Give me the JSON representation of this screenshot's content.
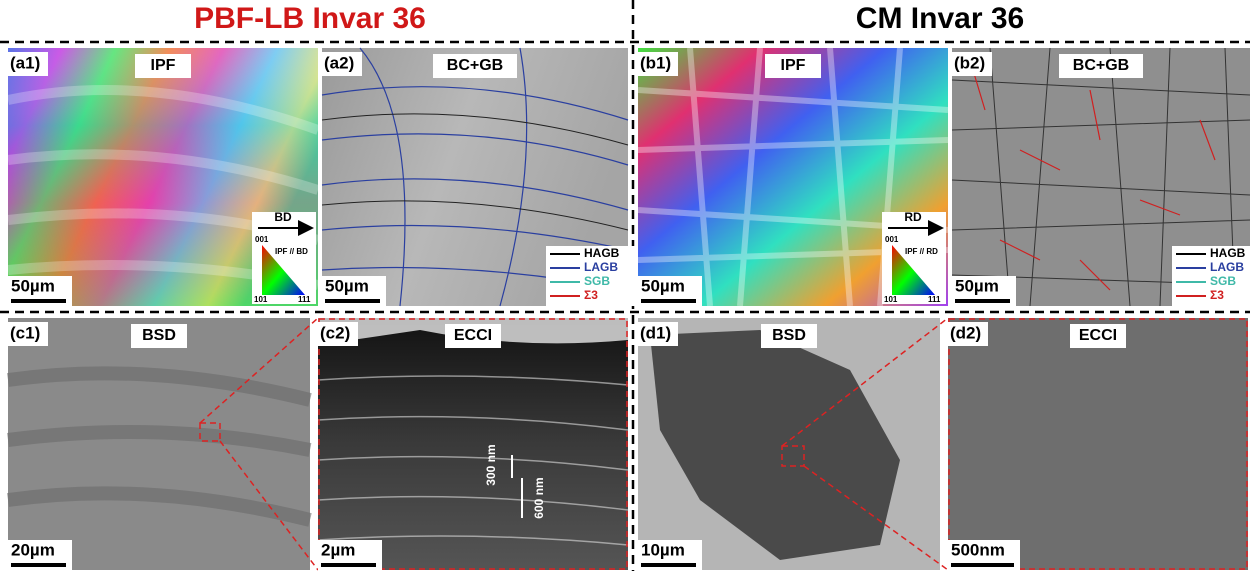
{
  "headers": [
    "PBF-LB Invar 36",
    "CM Invar 36"
  ],
  "panels": [
    {
      "label": "(a1)",
      "title": "IPF",
      "scale_bar": "50µm"
    },
    {
      "label": "(a2)",
      "title": "BC+GB",
      "scale_bar": "50µm"
    },
    {
      "label": "(b1)",
      "title": "IPF",
      "scale_bar": "50µm"
    },
    {
      "label": "(b2)",
      "title": "BC+GB",
      "scale_bar": "50µm"
    },
    {
      "label": "(c1)",
      "title": "BSD",
      "scale_bar": "20µm"
    },
    {
      "label": "(c2)",
      "title": "ECCI",
      "scale_bar": "2µm"
    },
    {
      "label": "(d1)",
      "title": "BSD",
      "scale_bar": "10µm"
    },
    {
      "label": "(d2)",
      "title": "ECCI",
      "scale_bar": "500nm"
    }
  ],
  "ipf_keys": [
    {
      "direction": "BD",
      "title": "IPF // BD",
      "corners": [
        "001",
        "101",
        "111"
      ]
    },
    {
      "direction": "RD",
      "title": "IPF // RD",
      "corners": [
        "001",
        "101",
        "111"
      ]
    }
  ],
  "boundary_legend": [
    "HAGB",
    "LAGB",
    "SGB",
    "Σ3"
  ],
  "annotations": [
    "300 nm",
    "600 nm"
  ]
}
